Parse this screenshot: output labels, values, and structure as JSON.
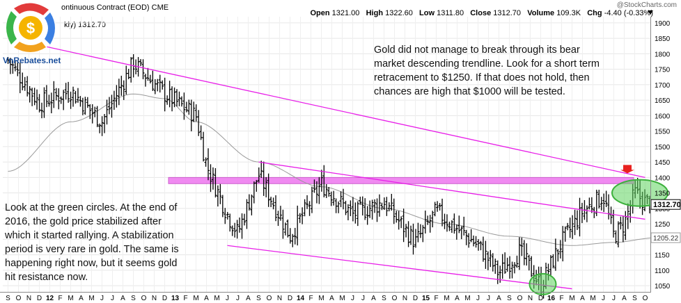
{
  "header": {
    "contract": "ontinuous Contract (EOD)",
    "exchange": "CME",
    "period_label": "kly) 1312.70",
    "open_label": "Open",
    "open": "1321.00",
    "high_label": "High",
    "high": "1322.60",
    "low_label": "Low",
    "low": "1311.80",
    "close_label": "Close",
    "close": "1312.70",
    "volume_label": "Volume",
    "volume": "109.3K",
    "chg_label": "Chg",
    "chg": "-4.40 (-0.33%)",
    "watermark": "@StockCharts.com"
  },
  "logo": {
    "text": "VnRebates.net"
  },
  "annotations": {
    "top": [
      "Gold did not manage to break through its bear",
      "market descending trendline. Look for a short term",
      "retracement to $1250. If that does not hold, then",
      "chances are high that $1000 will be tested."
    ],
    "left": [
      "Look at the green circles. At the end of",
      "2016, the gold price stabilized after",
      "which it started rallying. A stabilization",
      "period is very rare in gold. The same is",
      "happening right now, but it seems gold",
      "hit resistance now."
    ]
  },
  "colors": {
    "bars": "#000000",
    "moving_average": "#999999",
    "trendline": "#e81ee8",
    "resistance_band": "#ef7ef0",
    "circle": "#5fd35f",
    "arrow": "#e8211f",
    "price_label_bg": "#ffffff"
  },
  "chart_data": {
    "type": "ohlc",
    "title": "Gold Continuous Contract (EOD) weekly",
    "y_axis": {
      "min": 1030,
      "max": 1920,
      "ticks": [
        1050,
        1100,
        1150,
        1200,
        1250,
        1300,
        1350,
        1400,
        1450,
        1500,
        1550,
        1600,
        1650,
        1700,
        1750,
        1800,
        1850,
        1900
      ],
      "last_price_label": "1312.70",
      "ma_label": "1205.22"
    },
    "x_axis": {
      "labels": [
        "S",
        "O",
        "N",
        "D",
        "12",
        "F",
        "M",
        "A",
        "M",
        "J",
        "J",
        "A",
        "S",
        "O",
        "N",
        "D",
        "13",
        "F",
        "M",
        "A",
        "M",
        "J",
        "J",
        "A",
        "S",
        "O",
        "N",
        "D",
        "14",
        "F",
        "M",
        "A",
        "M",
        "J",
        "J",
        "A",
        "S",
        "O",
        "N",
        "D",
        "15",
        "F",
        "M",
        "A",
        "M",
        "J",
        "J",
        "A",
        "S",
        "O",
        "N",
        "D",
        "16",
        "F",
        "M",
        "A",
        "M",
        "J",
        "J",
        "A",
        "S",
        "O"
      ],
      "year_labels": [
        "12",
        "13",
        "14",
        "15",
        "16"
      ]
    },
    "price_series_weekly_closes_approx": [
      {
        "month": 0,
        "value": 1780
      },
      {
        "month": 3,
        "value": 1640
      },
      {
        "month": 6,
        "value": 1680
      },
      {
        "month": 9,
        "value": 1580
      },
      {
        "month": 12,
        "value": 1770
      },
      {
        "month": 15,
        "value": 1670
      },
      {
        "month": 18,
        "value": 1600
      },
      {
        "month": 19,
        "value": 1440
      },
      {
        "month": 21,
        "value": 1280
      },
      {
        "month": 22,
        "value": 1220
      },
      {
        "month": 24,
        "value": 1410
      },
      {
        "month": 27,
        "value": 1210
      },
      {
        "month": 30,
        "value": 1380
      },
      {
        "month": 33,
        "value": 1280
      },
      {
        "month": 36,
        "value": 1320
      },
      {
        "month": 39,
        "value": 1190
      },
      {
        "month": 41,
        "value": 1290
      },
      {
        "month": 45,
        "value": 1180
      },
      {
        "month": 47,
        "value": 1090
      },
      {
        "month": 49,
        "value": 1160
      },
      {
        "month": 51,
        "value": 1050
      },
      {
        "month": 53,
        "value": 1190
      },
      {
        "month": 55,
        "value": 1290
      },
      {
        "month": 57,
        "value": 1340
      },
      {
        "month": 58,
        "value": 1210
      },
      {
        "month": 59,
        "value": 1250
      },
      {
        "month": 60,
        "value": 1350
      },
      {
        "month": 61,
        "value": 1320
      }
    ],
    "moving_average_approx": [
      {
        "month": 0,
        "value": 1420
      },
      {
        "month": 6,
        "value": 1580
      },
      {
        "month": 12,
        "value": 1670
      },
      {
        "month": 15,
        "value": 1655
      },
      {
        "month": 18,
        "value": 1580
      },
      {
        "month": 24,
        "value": 1450
      },
      {
        "month": 30,
        "value": 1370
      },
      {
        "month": 36,
        "value": 1300
      },
      {
        "month": 42,
        "value": 1250
      },
      {
        "month": 48,
        "value": 1210
      },
      {
        "month": 54,
        "value": 1180
      },
      {
        "month": 58,
        "value": 1190
      },
      {
        "month": 62,
        "value": 1205
      }
    ],
    "trendlines": [
      {
        "name": "upper-bear-trendline",
        "from": {
          "month": 0,
          "value": 1850
        },
        "to": {
          "month": 61,
          "value": 1400
        }
      },
      {
        "name": "middle-trendline",
        "from": {
          "month": 24,
          "value": 1450
        },
        "to": {
          "month": 61,
          "value": 1265
        }
      },
      {
        "name": "lower-channel-line",
        "from": {
          "month": 21,
          "value": 1180
        },
        "to": {
          "month": 54,
          "value": 1040
        }
      }
    ],
    "resistance_band": {
      "low": 1380,
      "high": 1400
    },
    "highlight_circles": [
      {
        "name": "end-2016-circle",
        "month": 51.2,
        "value": 1055
      },
      {
        "name": "current-circle",
        "month": 60.5,
        "value": 1350
      }
    ]
  }
}
